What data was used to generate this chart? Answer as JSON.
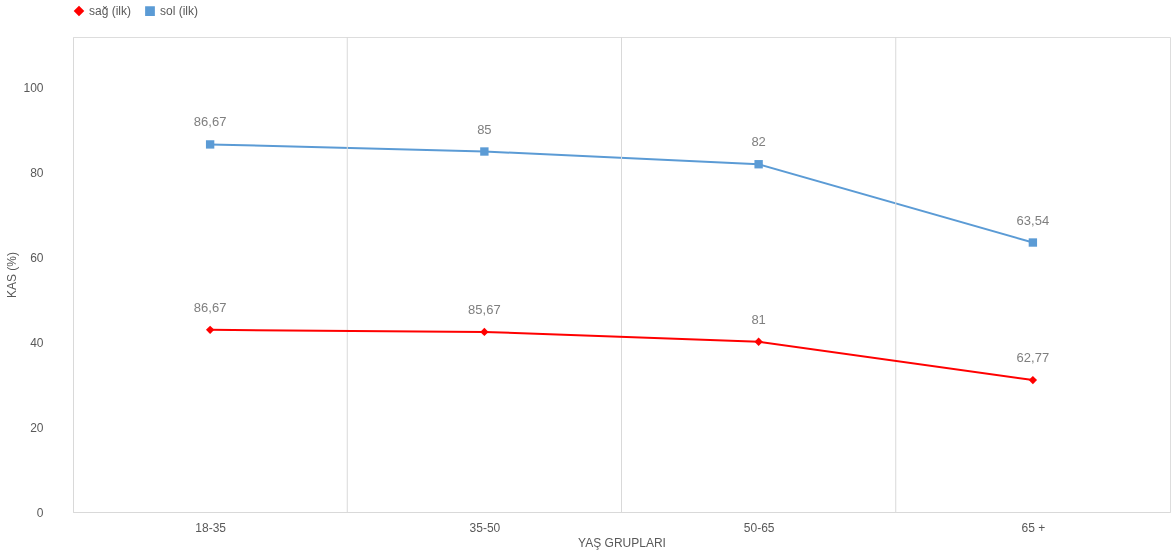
{
  "chart_data": {
    "type": "line",
    "xlabel": "YAŞ GRUPLARI",
    "ylabel": "KAS (%)",
    "categories": [
      "18-35",
      "35-50",
      "50-65",
      "65 +"
    ],
    "series": [
      {
        "name": "sağ (ilk)",
        "color": "#ff0000",
        "values": [
          86.67,
          85.67,
          81,
          62.77
        ],
        "value_labels": [
          "86,67",
          "85,67",
          "81",
          "62,77"
        ],
        "marker": "diamond",
        "axis": "y2"
      },
      {
        "name": "sol (ilk)",
        "color": "#5b9bd5",
        "values": [
          86.67,
          85,
          82,
          63.54
        ],
        "value_labels": [
          "86,67",
          "85",
          "82",
          "63,54"
        ],
        "marker": "square"
      }
    ],
    "ylim": [
      0,
      112
    ],
    "yticks": [
      0,
      20,
      40,
      60,
      80,
      100
    ],
    "y2lim": [
      0,
      226
    ],
    "tick_labels": "xy",
    "grid": "x",
    "legend": "top",
    "line_style": "solid"
  }
}
